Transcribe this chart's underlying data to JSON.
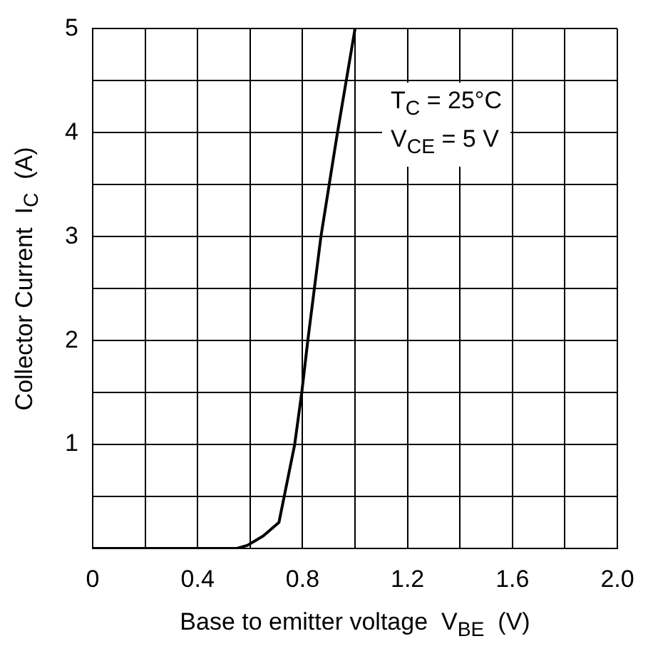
{
  "chart_data": {
    "type": "line",
    "xlabel": "Base to emitter voltage  V$_{BE}$  (V)",
    "ylabel": "Collector Current  I$_{C}$  (A)",
    "annotations": [
      "T$_{C}$ = 25°C",
      "V$_{CE}$ = 5 V"
    ],
    "x": [
      0,
      0.55,
      0.59,
      0.65,
      0.71,
      0.73,
      0.77,
      0.797,
      0.82,
      0.87,
      0.933,
      1.0
    ],
    "series": [
      {
        "color": "#000000",
        "values": [
          0,
          0,
          0.03,
          0.12,
          0.25,
          0.5,
          1.0,
          1.5,
          2.0,
          3.0,
          4.0,
          5.0
        ]
      }
    ],
    "xlim": [
      0,
      2.0
    ],
    "xticks": [
      0,
      {
        "value": 0.2,
        "label": null
      },
      0.4,
      {
        "value": 0.6,
        "label": null
      },
      0.8,
      {
        "value": 1.0,
        "label": null
      },
      1.2,
      {
        "value": 1.4,
        "label": null
      },
      1.6,
      {
        "value": 1.8,
        "label": null
      },
      {
        "value": 2.0,
        "label": "2.0"
      }
    ],
    "ylim": [
      0,
      5
    ],
    "yticks": [
      {
        "value": 0,
        "label": null
      },
      {
        "value": 0.5,
        "label": null
      },
      1,
      {
        "value": 1.5,
        "label": null
      },
      2,
      {
        "value": 2.5,
        "label": null
      },
      3,
      {
        "value": 3.5,
        "label": null
      },
      4,
      {
        "value": 4.5,
        "label": null
      },
      5
    ],
    "grid": true,
    "legend": false,
    "marker": "none",
    "line_style": "solid"
  }
}
